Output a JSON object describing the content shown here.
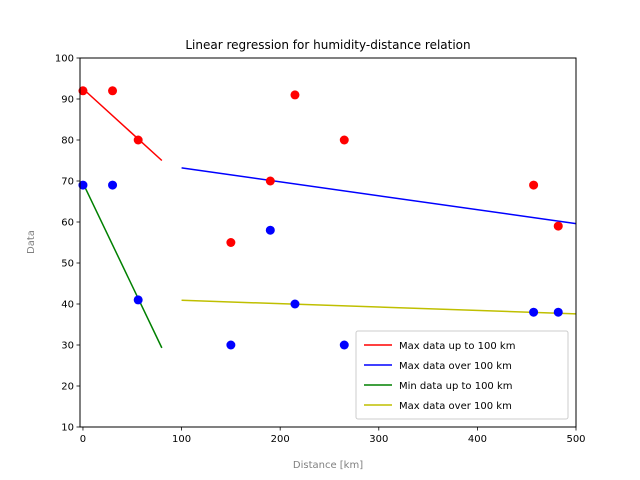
{
  "chart_data": {
    "type": "scatter",
    "title": "Linear regression for humidity-distance relation",
    "xlabel": "Distance [km]",
    "ylabel": "Data",
    "xlim": [
      -3,
      500
    ],
    "ylim": [
      10,
      100
    ],
    "xticks": [
      0,
      100,
      200,
      300,
      400,
      500
    ],
    "yticks": [
      10,
      20,
      30,
      40,
      50,
      60,
      70,
      80,
      90,
      100
    ],
    "grid": false,
    "legend_position": "lower-right",
    "scatter_series": [
      {
        "color": "#ff0000",
        "points": [
          [
            0,
            92
          ],
          [
            30,
            92
          ],
          [
            56,
            80
          ],
          [
            150,
            55
          ],
          [
            190,
            70
          ],
          [
            215,
            91
          ],
          [
            265,
            80
          ],
          [
            457,
            69
          ],
          [
            482,
            59
          ]
        ]
      },
      {
        "color": "#0000ff",
        "points": [
          [
            0,
            69
          ],
          [
            30,
            69
          ],
          [
            56,
            41
          ],
          [
            150,
            30
          ],
          [
            190,
            58
          ],
          [
            215,
            40
          ],
          [
            265,
            30
          ],
          [
            457,
            38
          ],
          [
            482,
            38
          ]
        ]
      }
    ],
    "line_series": [
      {
        "name": "Max data up to 100 km",
        "color": "#ff0000",
        "points": [
          [
            0,
            92.5
          ],
          [
            80,
            75
          ]
        ]
      },
      {
        "name": "Max data over 100 km",
        "color": "#0000ff",
        "points": [
          [
            100,
            73.2
          ],
          [
            500,
            59.6
          ]
        ]
      },
      {
        "name": "Min data up to 100 km",
        "color": "#008000",
        "points": [
          [
            0,
            69.5
          ],
          [
            80,
            29.3
          ]
        ]
      },
      {
        "name": "Max data over 100 km",
        "color": "#bfbf00",
        "points": [
          [
            100,
            40.9
          ],
          [
            500,
            37.6
          ]
        ]
      }
    ]
  }
}
